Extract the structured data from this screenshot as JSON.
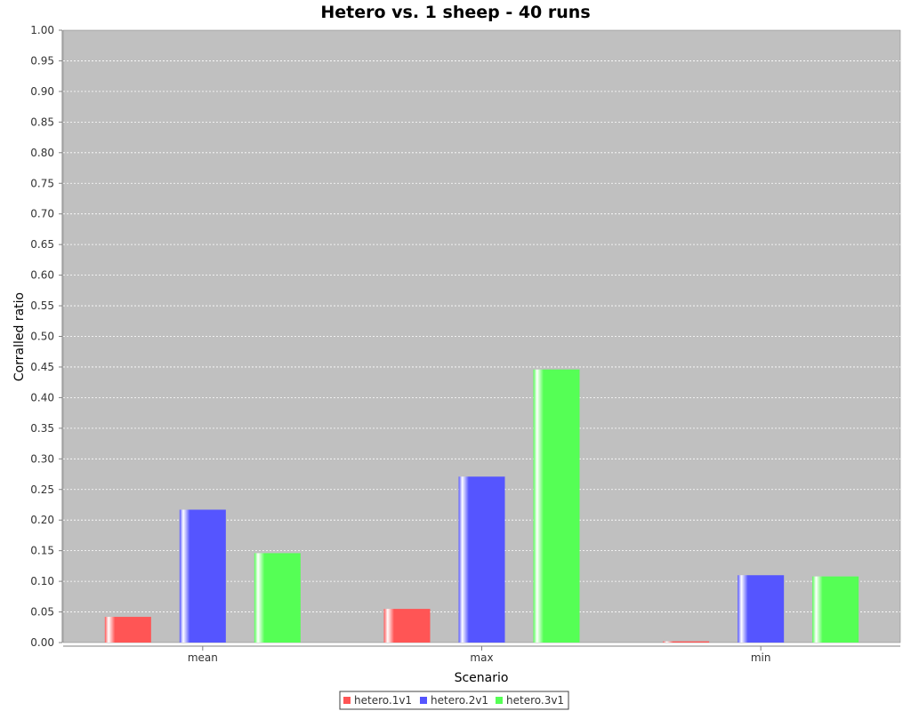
{
  "chart_data": {
    "type": "bar",
    "title": "Hetero vs. 1 sheep - 40 runs",
    "xlabel": "Scenario",
    "ylabel": "Corralled ratio",
    "ylim": [
      0,
      1.0
    ],
    "yticks": [
      "0.00",
      "0.05",
      "0.10",
      "0.15",
      "0.20",
      "0.25",
      "0.30",
      "0.35",
      "0.40",
      "0.45",
      "0.50",
      "0.55",
      "0.60",
      "0.65",
      "0.70",
      "0.75",
      "0.80",
      "0.85",
      "0.90",
      "0.95",
      "1.00"
    ],
    "grid": true,
    "legend": "bottom",
    "plot_background": "#c0c0c0",
    "categories": [
      "mean",
      "max",
      "min"
    ],
    "series": [
      {
        "name": "hetero.1v1",
        "color": "#ff5555",
        "values": [
          0.042,
          0.055,
          0.002
        ]
      },
      {
        "name": "hetero.2v1",
        "color": "#5555ff",
        "values": [
          0.217,
          0.271,
          0.11
        ]
      },
      {
        "name": "hetero.3v1",
        "color": "#55ff55",
        "values": [
          0.146,
          0.446,
          0.108
        ]
      }
    ]
  }
}
